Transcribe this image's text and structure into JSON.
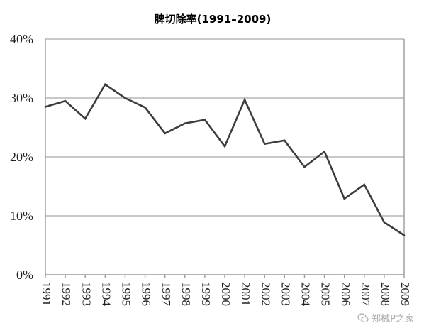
{
  "chart_data": {
    "type": "line",
    "title": "脾切除率(1991–2009)",
    "xlabel": "",
    "ylabel": "",
    "x": [
      "1991",
      "1992",
      "1993",
      "1994",
      "1995",
      "1996",
      "1997",
      "1998",
      "1999",
      "2000",
      "2001",
      "2002",
      "2003",
      "2004",
      "2005",
      "2006",
      "2007",
      "2008",
      "2009"
    ],
    "series": [
      {
        "values": [
          28.5,
          29.5,
          26.5,
          32.3,
          30.0,
          28.4,
          24.0,
          25.7,
          26.3,
          21.8,
          29.7,
          22.2,
          22.8,
          18.3,
          20.9,
          12.9,
          15.3,
          8.9,
          6.7
        ],
        "color": "#3d3d3d"
      }
    ],
    "ylim": [
      0,
      40
    ],
    "yticks": [
      0,
      10,
      20,
      30,
      40
    ],
    "ytick_labels": [
      "0%",
      "10%",
      "20%",
      "30%",
      "40%"
    ],
    "grid": true,
    "legend": "none"
  },
  "watermark": {
    "text": "郑械P之家",
    "icon": "wechat-logo-icon"
  }
}
